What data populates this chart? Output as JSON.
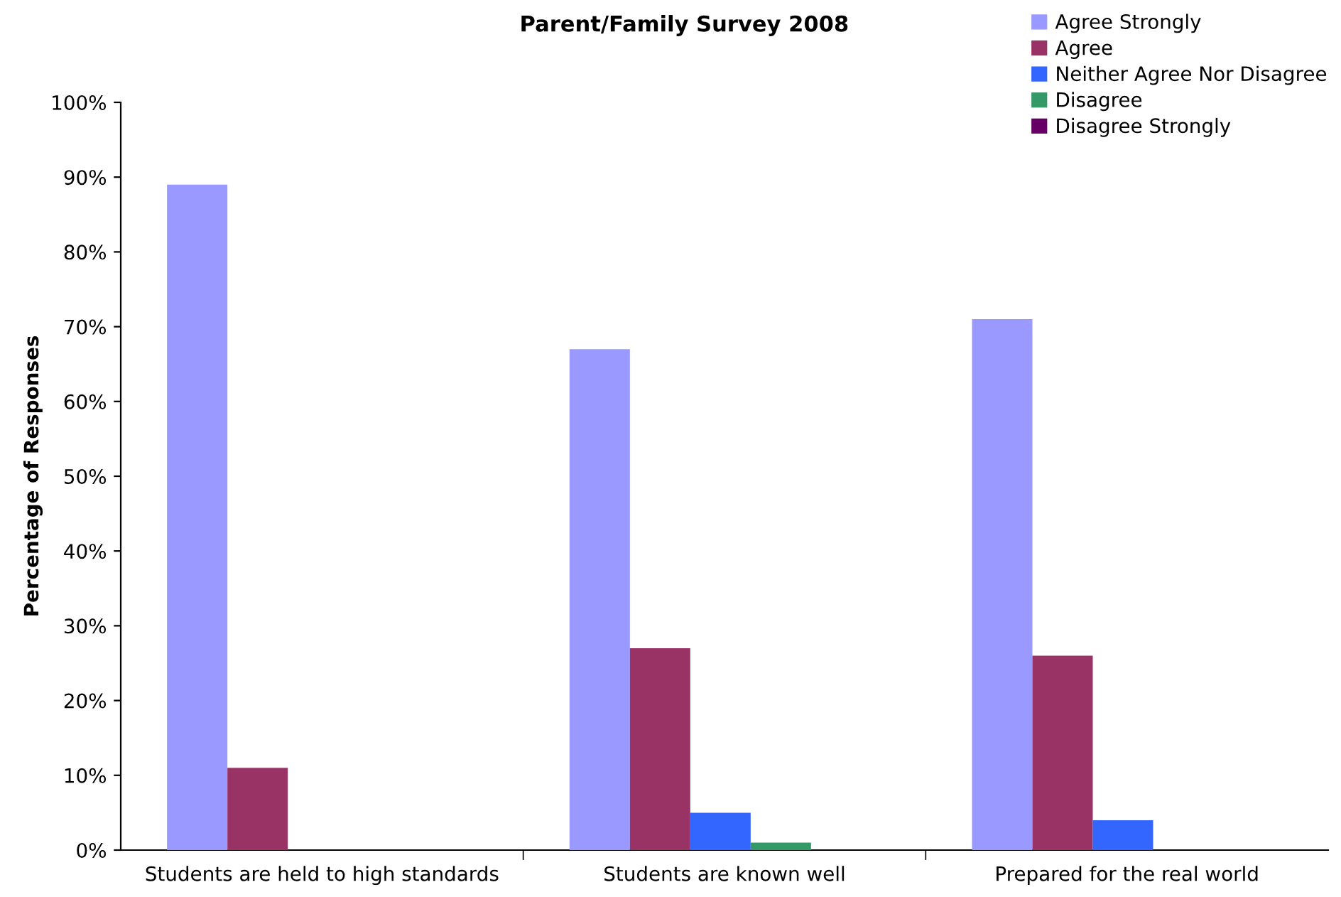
{
  "chart_data": {
    "type": "bar",
    "title": "Parent/Family Survey 2008",
    "ylabel": "Percentage of Responses",
    "categories": [
      "Students are held to high standards",
      "Students are known well",
      "Prepared for the real world"
    ],
    "series": [
      {
        "name": "Agree Strongly",
        "color": "#9999ff",
        "values": [
          89,
          67,
          71
        ]
      },
      {
        "name": "Agree",
        "color": "#993366",
        "values": [
          11,
          27,
          26
        ]
      },
      {
        "name": "Neither Agree Nor Disagree",
        "color": "#3366ff",
        "values": [
          0,
          5,
          4
        ]
      },
      {
        "name": "Disagree",
        "color": "#339966",
        "values": [
          0,
          1,
          0
        ]
      },
      {
        "name": "Disagree Strongly",
        "color": "#660066",
        "values": [
          0,
          0,
          0
        ]
      }
    ],
    "ylim": [
      0,
      100
    ],
    "yticks": [
      {
        "value": 0,
        "label": "0%"
      },
      {
        "value": 10,
        "label": "10%"
      },
      {
        "value": 20,
        "label": "20%"
      },
      {
        "value": 30,
        "label": "30%"
      },
      {
        "value": 40,
        "label": "40%"
      },
      {
        "value": 50,
        "label": "50%"
      },
      {
        "value": 60,
        "label": "60%"
      },
      {
        "value": 70,
        "label": "70%"
      },
      {
        "value": 80,
        "label": "80%"
      },
      {
        "value": 90,
        "label": "90%"
      },
      {
        "value": 100,
        "label": "100%"
      }
    ],
    "grid": false,
    "legend": "top right"
  }
}
